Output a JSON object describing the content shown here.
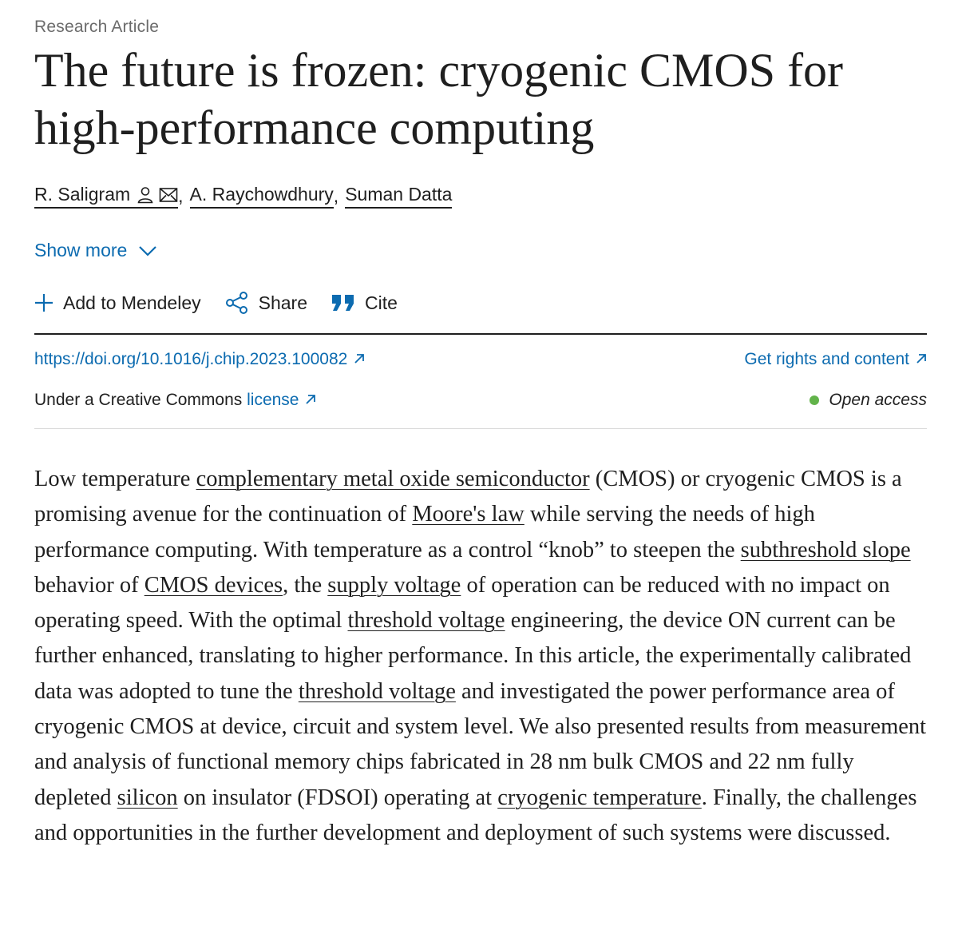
{
  "article_type": "Research Article",
  "title": "The future is frozen: cryogenic CMOS for high-performance computing",
  "authors": [
    {
      "name": "R. Saligram"
    },
    {
      "name": "A. Raychowdhury"
    },
    {
      "name": "Suman Datta"
    }
  ],
  "author_separator": ",",
  "icons": {
    "author_profile": "person-icon",
    "author_email": "envelope-icon",
    "show_more": "chevron-down-icon",
    "add": "plus-icon",
    "share": "share-icon",
    "cite": "quote-icon",
    "external": "arrow-up-right-icon"
  },
  "show_more_label": "Show more",
  "actions": {
    "add_label": "Add to Mendeley",
    "share_label": "Share",
    "cite_label": "Cite"
  },
  "doi": "https://doi.org/10.1016/j.chip.2023.100082",
  "rights_label": "Get rights and content",
  "license": {
    "prefix": "Under a Creative Commons",
    "link": "license"
  },
  "access_label": "Open access",
  "colors": {
    "link": "#0c6bb0",
    "text": "#1f1f1f",
    "muted": "#6b6b6b",
    "open_access_dot": "#62b34a"
  },
  "abstract": {
    "p01": "Low temperature ",
    "l01": "complementary metal oxide semiconductor",
    "p02": " (CMOS) or cryogenic CMOS is a promising avenue for the continuation of ",
    "l02": "Moore's law",
    "p03": " while serving the needs of high performance computing. With temperature as a control “knob” to steepen the ",
    "l03": "subthreshold slope",
    "p04": " behavior of ",
    "l04": "CMOS devices",
    "p05": ", the ",
    "l05": "supply voltage",
    "p06": " of operation can be reduced with no impact on operating speed. With the optimal ",
    "l06": "threshold voltage",
    "p07": " engineering, the device ON current can be further enhanced, translating to higher performance. In this article, the experimentally calibrated data was adopted to tune the ",
    "l07": "threshold voltage",
    "p08": " and investigated the power performance area of cryogenic CMOS at device, circuit and system level. We also presented results from measurement and analysis of functional memory chips fabricated in 28 nm bulk CMOS and 22 nm fully depleted ",
    "l08": "silicon",
    "p09": " on insulator (FDSOI) operating at ",
    "l09": "cryogenic temperature",
    "p10": ". Finally, the challenges and opportunities in the further development and deployment of such systems were discussed."
  }
}
